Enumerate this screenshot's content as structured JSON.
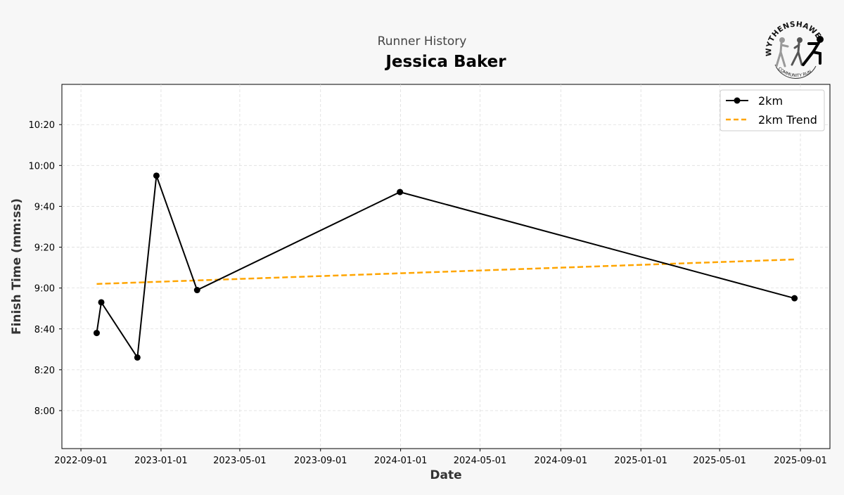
{
  "header": {
    "subtitle": "Runner History",
    "title": "Jessica Baker"
  },
  "logo": {
    "top_text": "WYTHENSHAWE",
    "bottom_text": "COMMUNITY RUN"
  },
  "colors": {
    "series": "#000000",
    "trend": "#ffa500",
    "background": "#f7f7f7",
    "grid": "#dddddd"
  },
  "chart_data": {
    "type": "line",
    "title": "Jessica Baker",
    "subtitle": "Runner History",
    "xlabel": "Date",
    "ylabel": "Finish Time (mm:ss)",
    "xlim": [
      "2022-08-03",
      "2025-10-16"
    ],
    "ylim": [
      "7:41",
      "10:40"
    ],
    "grid": true,
    "legend_position": "top-right",
    "x_ticks": [
      "2022-09-01",
      "2023-01-01",
      "2023-05-01",
      "2023-09-01",
      "2024-01-01",
      "2024-05-01",
      "2024-09-01",
      "2025-01-01",
      "2025-05-01",
      "2025-09-01"
    ],
    "y_ticks": [
      "8:00",
      "8:20",
      "8:40",
      "9:00",
      "9:20",
      "9:40",
      "10:00",
      "10:20"
    ],
    "series": [
      {
        "name": "2km",
        "style": "solid-markers",
        "points": [
          {
            "x": "2022-09-25",
            "y": "8:38"
          },
          {
            "x": "2022-10-02",
            "y": "8:53"
          },
          {
            "x": "2022-11-26",
            "y": "8:26"
          },
          {
            "x": "2022-12-25",
            "y": "9:55"
          },
          {
            "x": "2023-02-25",
            "y": "8:59"
          },
          {
            "x": "2023-12-31",
            "y": "9:47"
          },
          {
            "x": "2025-08-23",
            "y": "8:55"
          }
        ]
      },
      {
        "name": "2km Trend",
        "style": "dashed",
        "points": [
          {
            "x": "2022-09-25",
            "y": "9:02"
          },
          {
            "x": "2025-08-23",
            "y": "9:14"
          }
        ]
      }
    ]
  }
}
